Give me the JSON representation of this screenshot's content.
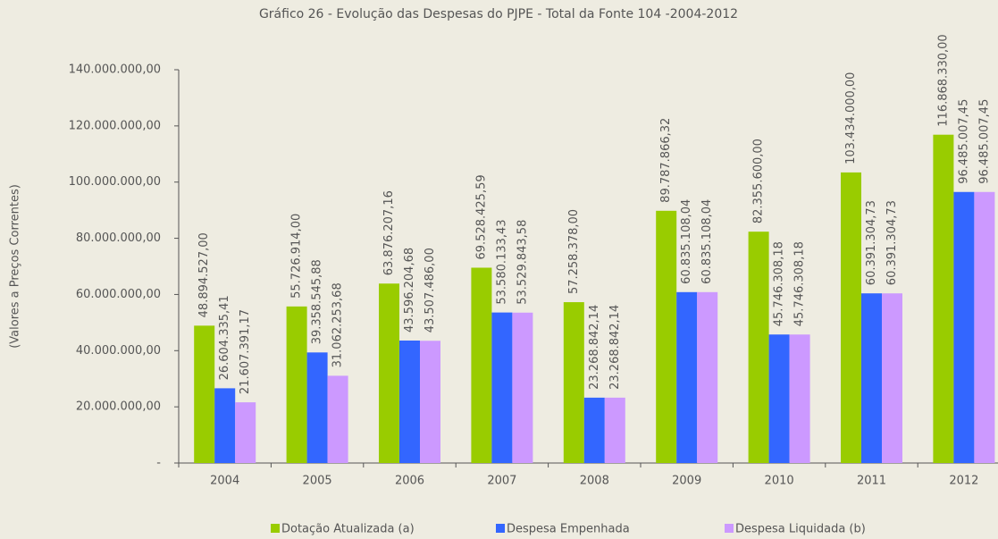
{
  "chart_data": {
    "type": "bar",
    "title": "Gráfico 26 - Evolução das Despesas do PJPE - Total da Fonte 104 -2004-2012",
    "ylabel": "(Valores a Preços Correntes)",
    "categories": [
      "2004",
      "2005",
      "2006",
      "2007",
      "2008",
      "2009",
      "2010",
      "2011",
      "2012"
    ],
    "series": [
      {
        "name": "Dotação Atualizada (a)",
        "color": "#99cc00",
        "values": [
          48894527.0,
          55726914.0,
          63876207.16,
          69528425.59,
          57258378.0,
          89787866.32,
          82355600.0,
          103434000.0,
          116868330.0
        ],
        "value_labels": [
          "48.894.527,00",
          "55.726.914,00",
          "63.876.207,16",
          "69.528.425,59",
          "57.258.378,00",
          "89.787.866,32",
          "82.355.600,00",
          "103.434.000,00",
          "116.868.330,00"
        ]
      },
      {
        "name": "Despesa Empenhada",
        "color": "#3366ff",
        "values": [
          26604335.41,
          39358545.88,
          43596204.68,
          53580133.43,
          23268842.14,
          60835108.04,
          45746308.18,
          60391304.73,
          96485007.45
        ],
        "value_labels": [
          "26.604.335,41",
          "39.358.545,88",
          "43.596.204,68",
          "53.580.133,43",
          "23.268.842,14",
          "60.835.108,04",
          "45.746.308,18",
          "60.391.304,73",
          "96.485.007,45"
        ]
      },
      {
        "name": "Despesa Liquidada (b)",
        "color": "#cc99ff",
        "values": [
          21607391.17,
          31062253.68,
          43507486.0,
          53529843.58,
          23268842.14,
          60835108.04,
          45746308.18,
          60391304.73,
          96485007.45
        ],
        "value_labels": [
          "21.607.391,17",
          "31.062.253,68",
          "43.507.486,00",
          "53.529.843,58",
          "23.268.842,14",
          "60.835.108,04",
          "45.746.308,18",
          "60.391.304,73",
          "96.485.007,45"
        ]
      }
    ],
    "ylim": [
      0,
      140000000
    ],
    "yticks": [
      {
        "value": 0,
        "label": "-"
      },
      {
        "value": 20000000,
        "label": "20.000.000,00"
      },
      {
        "value": 40000000,
        "label": "40.000.000,00"
      },
      {
        "value": 60000000,
        "label": "60.000.000,00"
      },
      {
        "value": 80000000,
        "label": "80.000.000,00"
      },
      {
        "value": 100000000,
        "label": "100.000.000,00"
      },
      {
        "value": 120000000,
        "label": "120.000.000,00"
      },
      {
        "value": 140000000,
        "label": "140.000.000,00"
      }
    ],
    "legend": "bottom"
  }
}
